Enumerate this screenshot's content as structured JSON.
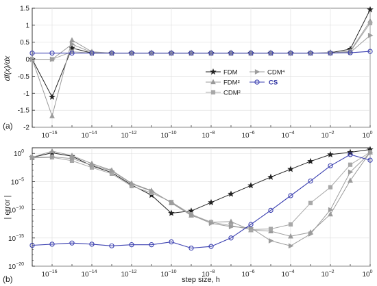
{
  "colors": {
    "FDM": "#222222",
    "FDM2": "#9a9a9a",
    "CDM2": "#a8a8a8",
    "CDM4": "#9c9c9c",
    "CS": "#3a3fb0"
  },
  "chart_data": [
    {
      "panel_label": "(a)",
      "type": "line",
      "ylabel": "df(x)/dx",
      "xlabel": "",
      "xscale": "log",
      "xlim": [
        1e-17,
        1
      ],
      "ylim": [
        -2,
        1.5
      ],
      "yticks": [
        -2,
        -1.5,
        -1,
        -0.5,
        0,
        0.5,
        1,
        1.5
      ],
      "ytick_labels": [
        "-2",
        "-1.5",
        "-1",
        "-0.5",
        "0",
        "0.5",
        "1",
        "1.5"
      ],
      "x": [
        1e-17,
        1e-16,
        1e-15,
        1e-14,
        1e-13,
        1e-12,
        1e-11,
        1e-10,
        1e-09,
        1e-08,
        1e-07,
        1e-06,
        1e-05,
        0.0001,
        0.001,
        0.01,
        0.1,
        1
      ],
      "series": [
        {
          "name": "FDM",
          "marker": "star",
          "colorKey": "FDM",
          "values": [
            0,
            -1.11,
            0.33,
            0.18,
            0.18,
            0.18,
            0.18,
            0.18,
            0.18,
            0.18,
            0.18,
            0.18,
            0.18,
            0.18,
            0.18,
            0.19,
            0.3,
            1.46
          ]
        },
        {
          "name": "FDM²",
          "marker": "triangle",
          "colorKey": "FDM2",
          "values": [
            0,
            -1.67,
            0.56,
            0.22,
            0.18,
            0.18,
            0.18,
            0.18,
            0.18,
            0.18,
            0.18,
            0.18,
            0.18,
            0.18,
            0.18,
            0.18,
            0.24,
            1.12
          ]
        },
        {
          "name": "CDM²",
          "marker": "square",
          "colorKey": "CDM2",
          "values": [
            0,
            0,
            0.22,
            0.18,
            0.18,
            0.18,
            0.18,
            0.18,
            0.18,
            0.18,
            0.18,
            0.18,
            0.18,
            0.18,
            0.18,
            0.18,
            0.22,
            1.06
          ]
        },
        {
          "name": "CDM⁴",
          "marker": "triangle-right",
          "colorKey": "CDM4",
          "values": [
            0,
            0,
            0.44,
            0.2,
            0.18,
            0.18,
            0.18,
            0.18,
            0.18,
            0.18,
            0.18,
            0.18,
            0.18,
            0.18,
            0.18,
            0.18,
            0.2,
            0.7
          ]
        },
        {
          "name": "CS",
          "marker": "circle",
          "colorKey": "CS",
          "values": [
            0.18,
            0.18,
            0.18,
            0.18,
            0.18,
            0.18,
            0.18,
            0.18,
            0.18,
            0.18,
            0.18,
            0.18,
            0.18,
            0.18,
            0.18,
            0.18,
            0.19,
            0.23
          ]
        }
      ],
      "legend_position": "center-right"
    },
    {
      "panel_label": "(b)",
      "type": "line",
      "ylabel": "| error |",
      "xlabel": "step size, h",
      "xscale": "log",
      "yscale": "log",
      "xlim": [
        1e-17,
        1
      ],
      "ylim": [
        -20,
        1
      ],
      "yticks": [
        0,
        -5,
        -10,
        -15,
        -20
      ],
      "ytick_labels": [
        "10⁰",
        "10⁻⁵",
        "10⁻¹⁰",
        "10⁻¹⁵",
        "10⁻²⁰"
      ],
      "x": [
        1e-17,
        1e-16,
        1e-15,
        1e-14,
        1e-13,
        1e-12,
        1e-11,
        1e-10,
        1e-09,
        1e-08,
        1e-07,
        1e-06,
        1e-05,
        0.0001,
        0.001,
        0.01,
        0.1,
        1
      ],
      "series": [
        {
          "name": "FDM",
          "marker": "star",
          "colorKey": "FDM",
          "exponents": [
            -0.7,
            0.1,
            -0.5,
            -2.2,
            -3.4,
            -5.6,
            -7.4,
            -10.6,
            -10.2,
            -8.7,
            -7.2,
            -5.7,
            -4.2,
            -2.8,
            -1.4,
            -0.2,
            0.2,
            0.7
          ]
        },
        {
          "name": "FDM²",
          "marker": "triangle",
          "colorKey": "FDM2",
          "exponents": [
            -0.7,
            0.4,
            -0.4,
            -1.8,
            -3.0,
            -5.3,
            -6.6,
            -8.8,
            -11.0,
            -12.2,
            -12.1,
            -13.6,
            -13.8,
            -14.7,
            -14.0,
            -10.8,
            -4.8,
            0.2
          ]
        },
        {
          "name": "CDM²",
          "marker": "square",
          "colorKey": "CDM2",
          "exponents": [
            -0.8,
            -0.7,
            -1.3,
            -2.5,
            -3.6,
            -5.8,
            -7.0,
            -8.6,
            -10.8,
            -12.2,
            -12.8,
            -13.5,
            -13.4,
            -12.6,
            -8.8,
            -6.0,
            -2.0,
            0.2
          ]
        },
        {
          "name": "CDM⁴",
          "marker": "triangle-right",
          "colorKey": "CDM4",
          "exponents": [
            -0.7,
            -0.6,
            -0.9,
            -2.1,
            -3.1,
            -5.4,
            -6.7,
            -8.7,
            -10.9,
            -12.4,
            -13.0,
            -13.2,
            -15.5,
            -16.4,
            -14.3,
            -10.0,
            -3.3,
            0.1
          ]
        },
        {
          "name": "CS",
          "marker": "circle",
          "colorKey": "CS",
          "exponents": [
            -16.3,
            -16.1,
            -15.9,
            -16.1,
            -16.4,
            -16.2,
            -16.2,
            -15.7,
            -16.8,
            -16.5,
            -15.0,
            -12.6,
            -10.1,
            -7.5,
            -4.9,
            -2.2,
            -0.2,
            -1.2
          ]
        }
      ]
    }
  ],
  "x_tick_labels": [
    {
      "exp": -16,
      "base": "10",
      "sup": "−16"
    },
    {
      "exp": -14,
      "base": "10",
      "sup": "−14"
    },
    {
      "exp": -12,
      "base": "10",
      "sup": "−12"
    },
    {
      "exp": -10,
      "base": "10",
      "sup": "−10"
    },
    {
      "exp": -8,
      "base": "10",
      "sup": "−8"
    },
    {
      "exp": -6,
      "base": "10",
      "sup": "−6"
    },
    {
      "exp": -4,
      "base": "10",
      "sup": "−4"
    },
    {
      "exp": -2,
      "base": "10",
      "sup": "−2"
    },
    {
      "exp": 0,
      "base": "10",
      "sup": "0"
    }
  ],
  "legend": [
    {
      "label": "FDM",
      "marker": "star",
      "colorKey": "FDM"
    },
    {
      "label": "FDM²",
      "marker": "triangle",
      "colorKey": "FDM2"
    },
    {
      "label": "CDM²",
      "marker": "square",
      "colorKey": "CDM2"
    },
    {
      "label": "CDM⁴",
      "marker": "triangle-right",
      "colorKey": "CDM4"
    },
    {
      "label": "CS",
      "marker": "circle",
      "colorKey": "CS"
    }
  ]
}
